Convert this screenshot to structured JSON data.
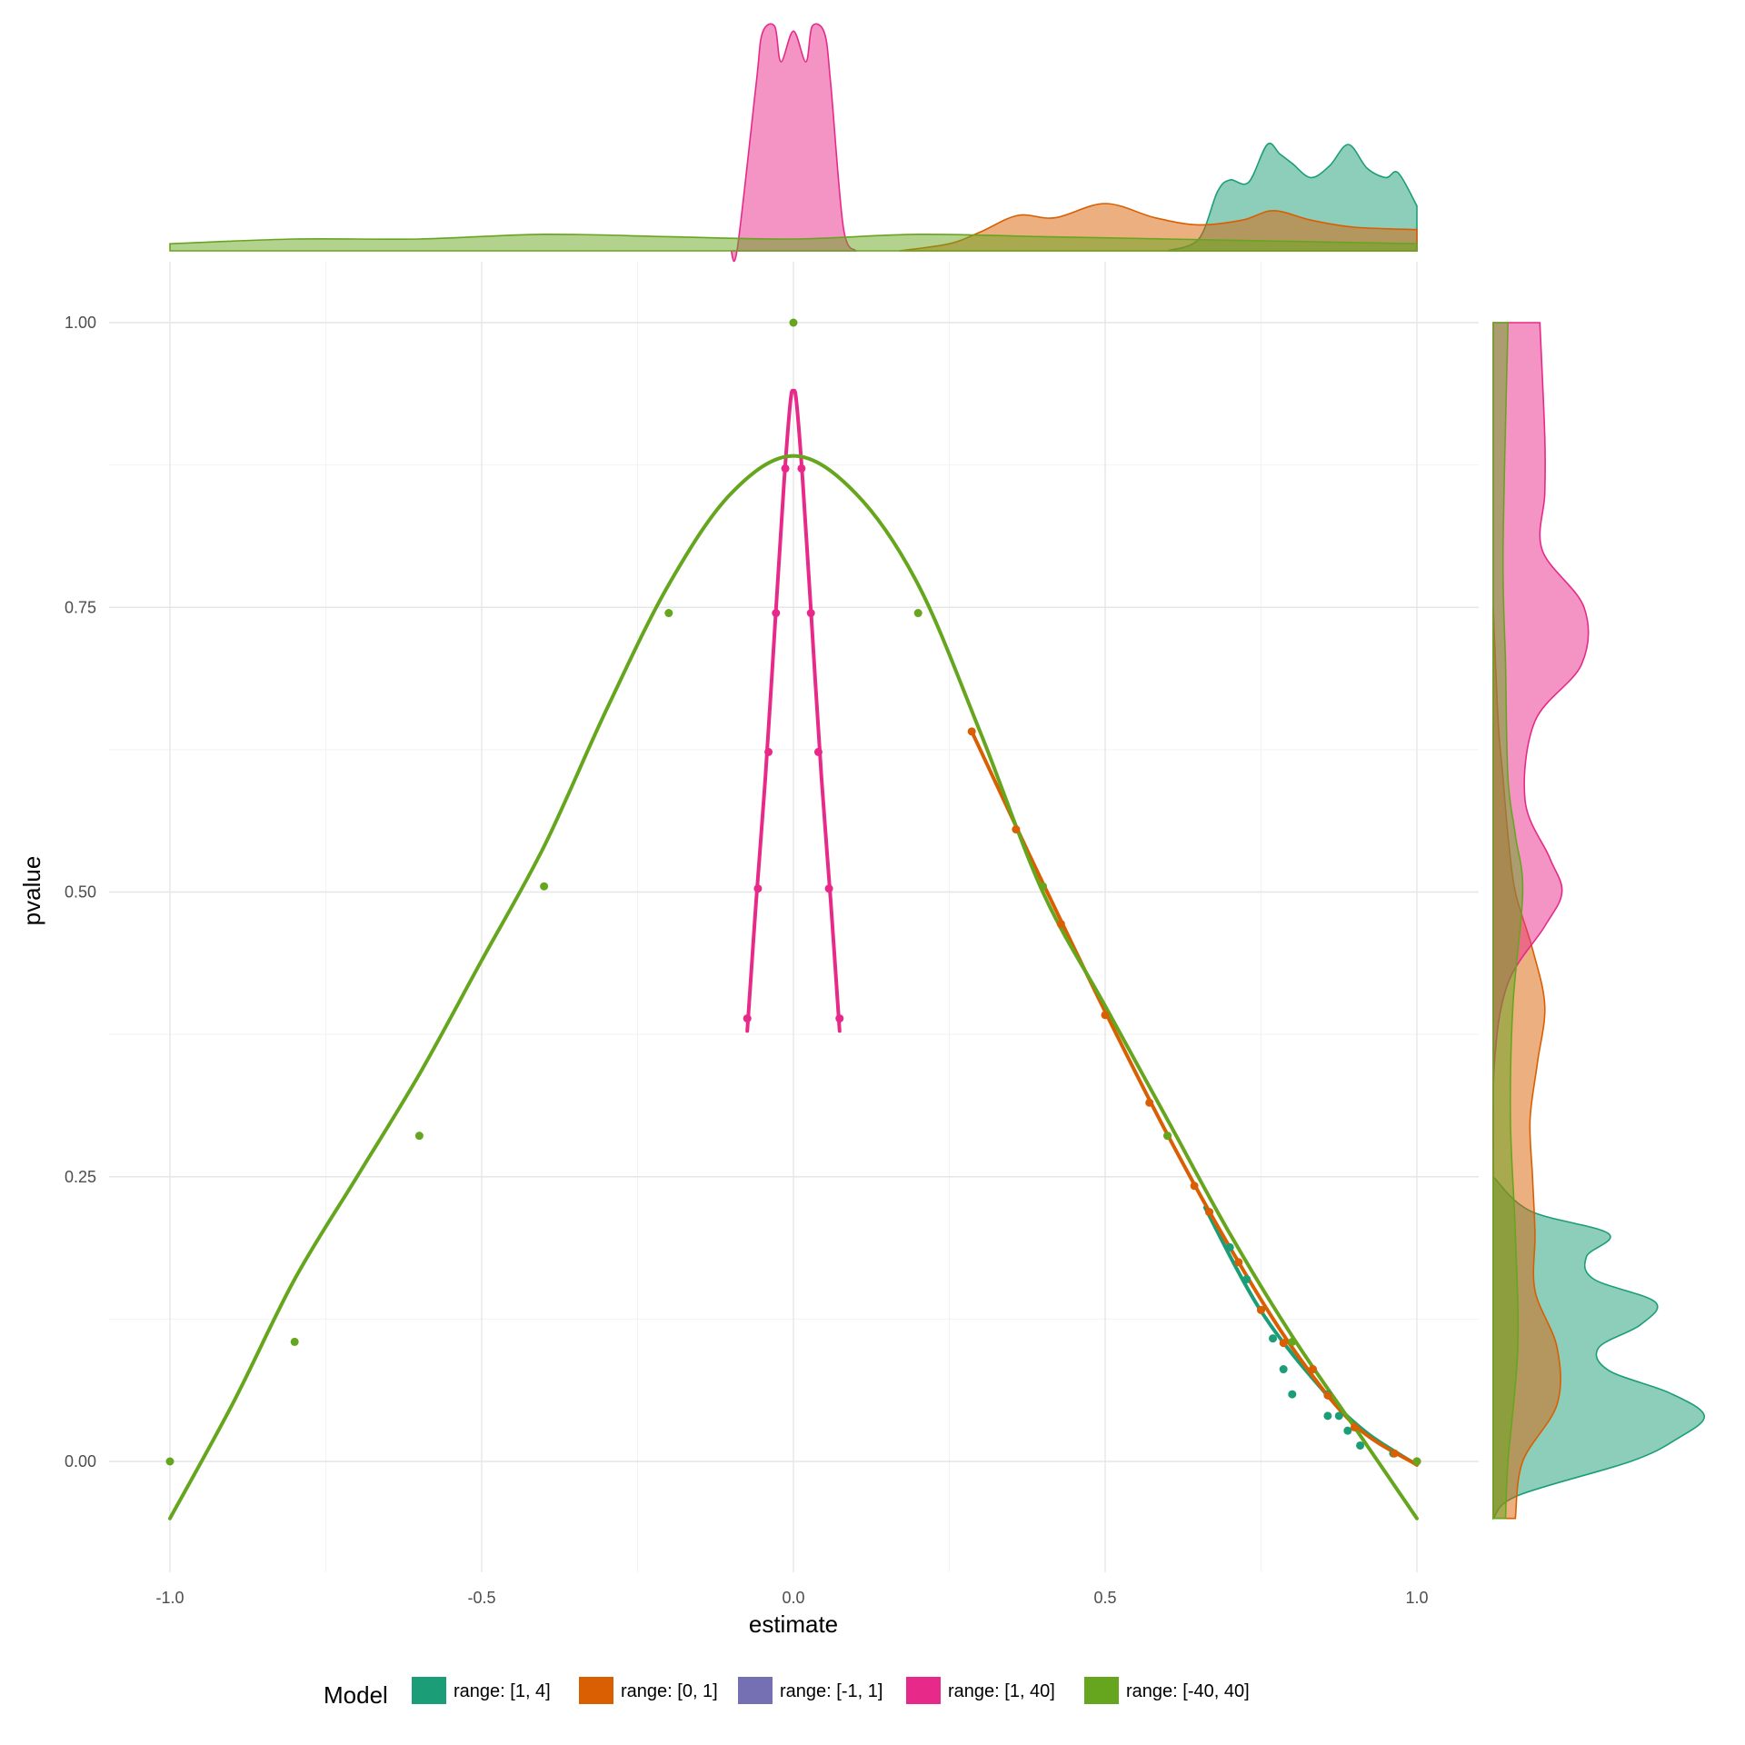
{
  "chart_data": {
    "type": "scatter",
    "title": "",
    "xlabel": "estimate",
    "ylabel": "pvalue",
    "xlim": [
      -1.0,
      1.0
    ],
    "ylim": [
      -0.05,
      1.0
    ],
    "x_ticks": [
      -1.0,
      -0.5,
      0.0,
      0.5,
      1.0
    ],
    "x_tick_labels": [
      "-1.0",
      "-0.5",
      "0.0",
      "0.5",
      "1.0"
    ],
    "y_ticks": [
      0.0,
      0.25,
      0.5,
      0.75,
      1.0
    ],
    "y_tick_labels": [
      "0.00",
      "0.25",
      "0.50",
      "0.75",
      "1.00"
    ],
    "grid": true,
    "legend": {
      "title": "Model",
      "position": "bottom",
      "entries": [
        "range: [1, 4]",
        "range: [0, 1]",
        "range: [-1, 1]",
        "range: [1, 40]",
        "range: [-40, 40]"
      ]
    },
    "colors": [
      "#1b9e77",
      "#d95f02",
      "#7570b3",
      "#e7298a",
      "#66a61e"
    ],
    "series": [
      {
        "name": "range: [1, 4]",
        "color": "#1b9e77",
        "points": [
          [
            0.667,
            0.219
          ],
          [
            0.7,
            0.188
          ],
          [
            0.727,
            0.16
          ],
          [
            0.75,
            0.133
          ],
          [
            0.769,
            0.108
          ],
          [
            0.786,
            0.081
          ],
          [
            0.8,
            0.059
          ],
          [
            0.857,
            0.04
          ],
          [
            1.0,
            0.0
          ],
          [
            0.833,
            0.081
          ],
          [
            0.857,
            0.059
          ],
          [
            0.875,
            0.04
          ],
          [
            0.889,
            0.027
          ],
          [
            0.909,
            0.014
          ],
          [
            0.962,
            0.007
          ]
        ],
        "fit": [
          [
            0.66,
            0.223
          ],
          [
            0.75,
            0.132
          ],
          [
            0.85,
            0.062
          ],
          [
            0.92,
            0.025
          ],
          [
            1.0,
            -0.003
          ]
        ]
      },
      {
        "name": "range: [0, 1]",
        "color": "#d95f02",
        "points": [
          [
            0.286,
            0.641
          ],
          [
            0.357,
            0.555
          ],
          [
            0.4,
            0.505
          ],
          [
            0.429,
            0.472
          ],
          [
            0.5,
            0.392
          ],
          [
            0.571,
            0.315
          ],
          [
            0.6,
            0.286
          ],
          [
            0.643,
            0.242
          ],
          [
            0.667,
            0.219
          ],
          [
            0.714,
            0.175
          ],
          [
            0.75,
            0.133
          ],
          [
            0.786,
            0.104
          ],
          [
            0.833,
            0.081
          ],
          [
            0.857,
            0.058
          ],
          [
            0.9,
            0.03
          ],
          [
            0.964,
            0.007
          ],
          [
            1.0,
            0.0
          ]
        ],
        "fit": [
          [
            0.286,
            0.641
          ],
          [
            0.35,
            0.566
          ],
          [
            0.4,
            0.508
          ],
          [
            0.5,
            0.395
          ],
          [
            0.6,
            0.287
          ],
          [
            0.7,
            0.188
          ],
          [
            0.8,
            0.1
          ],
          [
            0.9,
            0.032
          ],
          [
            1.0,
            -0.003
          ]
        ]
      },
      {
        "name": "range: [-1, 1]",
        "color": "#7570b3",
        "points": [],
        "fit": []
      },
      {
        "name": "range: [1, 40]",
        "color": "#e7298a",
        "points": [
          [
            -0.074,
            0.389
          ],
          [
            -0.057,
            0.503
          ],
          [
            -0.04,
            0.623
          ],
          [
            -0.028,
            0.745
          ],
          [
            -0.013,
            0.872
          ],
          [
            0.013,
            0.872
          ],
          [
            0.028,
            0.745
          ],
          [
            0.04,
            0.623
          ],
          [
            0.057,
            0.503
          ],
          [
            0.074,
            0.389
          ]
        ],
        "fit": [
          [
            -0.074,
            0.378
          ],
          [
            -0.06,
            0.49
          ],
          [
            -0.045,
            0.6
          ],
          [
            -0.03,
            0.73
          ],
          [
            -0.015,
            0.86
          ],
          [
            -0.005,
            0.93
          ],
          [
            0.0,
            0.94
          ],
          [
            0.005,
            0.93
          ],
          [
            0.015,
            0.86
          ],
          [
            0.03,
            0.73
          ],
          [
            0.045,
            0.6
          ],
          [
            0.06,
            0.49
          ],
          [
            0.074,
            0.378
          ]
        ]
      },
      {
        "name": "range: [-40, 40]",
        "color": "#66a61e",
        "points": [
          [
            -1.0,
            0.0
          ],
          [
            -0.8,
            0.105
          ],
          [
            -0.6,
            0.286
          ],
          [
            -0.4,
            0.505
          ],
          [
            -0.2,
            0.745
          ],
          [
            0.0,
            1.0
          ],
          [
            0.2,
            0.745
          ],
          [
            0.4,
            0.505
          ],
          [
            0.6,
            0.286
          ],
          [
            0.8,
            0.105
          ],
          [
            1.0,
            0.0
          ]
        ],
        "fit": [
          [
            -1.0,
            -0.05
          ],
          [
            -0.9,
            0.05
          ],
          [
            -0.8,
            0.16
          ],
          [
            -0.7,
            0.25
          ],
          [
            -0.6,
            0.34
          ],
          [
            -0.5,
            0.44
          ],
          [
            -0.4,
            0.54
          ],
          [
            -0.3,
            0.66
          ],
          [
            -0.2,
            0.77
          ],
          [
            -0.1,
            0.85
          ],
          [
            0.0,
            0.883
          ],
          [
            0.1,
            0.85
          ],
          [
            0.2,
            0.77
          ],
          [
            0.3,
            0.64
          ],
          [
            0.4,
            0.5
          ],
          [
            0.5,
            0.4
          ],
          [
            0.6,
            0.3
          ],
          [
            0.7,
            0.2
          ],
          [
            0.8,
            0.11
          ],
          [
            0.9,
            0.03
          ],
          [
            1.0,
            -0.05
          ]
        ]
      }
    ],
    "marginal_x": [
      {
        "name": "range: [1, 4]",
        "color": "#1b9e77",
        "x": [
          0.6,
          0.65,
          0.68,
          0.7,
          0.73,
          0.76,
          0.78,
          0.8,
          0.83,
          0.86,
          0.89,
          0.92,
          0.95,
          0.97,
          1.0
        ],
        "density": [
          0.0,
          0.5,
          2.5,
          3.0,
          2.9,
          4.5,
          4.1,
          3.7,
          3.1,
          3.6,
          4.5,
          3.5,
          3.1,
          3.3,
          1.9
        ]
      },
      {
        "name": "range: [0, 1]",
        "color": "#d95f02",
        "x": [
          0.17,
          0.25,
          0.3,
          0.36,
          0.42,
          0.5,
          0.58,
          0.65,
          0.72,
          0.77,
          0.83,
          0.9,
          1.0
        ],
        "density": [
          0.0,
          0.3,
          0.8,
          1.5,
          1.4,
          2.0,
          1.4,
          1.1,
          1.3,
          1.7,
          1.3,
          1.0,
          0.9
        ]
      },
      {
        "name": "range: [1, 40]",
        "color": "#e7298a",
        "x": [
          -0.1,
          -0.09,
          -0.06,
          -0.05,
          -0.03,
          -0.02,
          0.0,
          0.02,
          0.03,
          0.05,
          0.06,
          0.08,
          0.1
        ],
        "density": [
          0.0,
          0.1,
          7.0,
          9.2,
          9.5,
          8.0,
          9.3,
          8.0,
          9.5,
          9.2,
          7.0,
          1.0,
          0.0
        ]
      },
      {
        "name": "range: [-40, 40]",
        "color": "#66a61e",
        "x": [
          -1.0,
          -0.8,
          -0.6,
          -0.4,
          -0.2,
          0.0,
          0.2,
          0.4,
          0.6,
          0.8,
          1.0
        ],
        "density": [
          0.3,
          0.5,
          0.5,
          0.7,
          0.6,
          0.5,
          0.7,
          0.6,
          0.5,
          0.4,
          0.3
        ]
      }
    ],
    "marginal_y": [
      {
        "name": "range: [1, 4]",
        "color": "#1b9e77",
        "y": [
          -0.05,
          -0.03,
          0.0,
          0.02,
          0.04,
          0.06,
          0.08,
          0.1,
          0.12,
          0.14,
          0.16,
          0.18,
          0.2,
          0.22,
          0.25
        ],
        "density": [
          0.0,
          1.0,
          5.6,
          7.5,
          8.6,
          7.2,
          4.7,
          4.3,
          6.0,
          6.6,
          4.1,
          3.8,
          4.7,
          1.5,
          0.0
        ]
      },
      {
        "name": "range: [0, 1]",
        "color": "#d95f02",
        "y": [
          -0.05,
          0.0,
          0.05,
          0.1,
          0.15,
          0.2,
          0.25,
          0.3,
          0.35,
          0.4,
          0.45,
          0.5,
          0.55,
          0.6,
          0.65,
          0.75
        ],
        "density": [
          0.9,
          1.2,
          2.6,
          2.6,
          1.7,
          1.7,
          1.6,
          1.5,
          1.8,
          2.1,
          1.6,
          0.9,
          0.6,
          0.4,
          0.2,
          0.0
        ]
      },
      {
        "name": "range: [1, 40]",
        "color": "#e7298a",
        "y": [
          0.25,
          0.35,
          0.42,
          0.47,
          0.5,
          0.53,
          0.58,
          0.65,
          0.7,
          0.75,
          0.8,
          0.85,
          0.9,
          1.0
        ],
        "density": [
          0.0,
          0.05,
          0.6,
          2.1,
          2.8,
          2.3,
          1.3,
          1.7,
          3.6,
          3.7,
          2.0,
          2.1,
          2.1,
          1.9
        ]
      },
      {
        "name": "range: [-40, 40]",
        "color": "#66a61e",
        "y": [
          -0.05,
          0.0,
          0.1,
          0.2,
          0.3,
          0.4,
          0.5,
          0.55,
          0.6,
          0.7,
          0.8,
          1.0
        ],
        "density": [
          0.5,
          0.6,
          1.0,
          0.9,
          0.7,
          0.8,
          1.2,
          0.9,
          0.6,
          0.5,
          0.4,
          0.6
        ]
      }
    ]
  }
}
